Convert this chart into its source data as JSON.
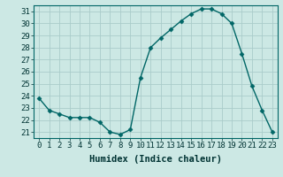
{
  "x": [
    0,
    1,
    2,
    3,
    4,
    5,
    6,
    7,
    8,
    9,
    10,
    11,
    12,
    13,
    14,
    15,
    16,
    17,
    18,
    19,
    20,
    21,
    22,
    23
  ],
  "y": [
    23.8,
    22.8,
    22.5,
    22.2,
    22.2,
    22.2,
    21.8,
    21.0,
    20.8,
    21.2,
    25.5,
    28.0,
    28.8,
    29.5,
    30.2,
    30.8,
    31.2,
    31.2,
    30.8,
    30.0,
    27.5,
    24.8,
    22.8,
    21.0
  ],
  "line_color": "#006666",
  "marker": "D",
  "marker_size": 2.5,
  "line_width": 1.0,
  "background_color": "#cce8e4",
  "grid_color_major": "#aaccca",
  "grid_color_minor": "#c0deda",
  "xlabel": "Humidex (Indice chaleur)",
  "xlabel_fontsize": 7.5,
  "tick_fontsize": 6.5,
  "xlim": [
    -0.5,
    23.5
  ],
  "ylim": [
    20.5,
    31.5
  ],
  "yticks": [
    21,
    22,
    23,
    24,
    25,
    26,
    27,
    28,
    29,
    30,
    31
  ],
  "xticks": [
    0,
    1,
    2,
    3,
    4,
    5,
    6,
    7,
    8,
    9,
    10,
    11,
    12,
    13,
    14,
    15,
    16,
    17,
    18,
    19,
    20,
    21,
    22,
    23
  ]
}
